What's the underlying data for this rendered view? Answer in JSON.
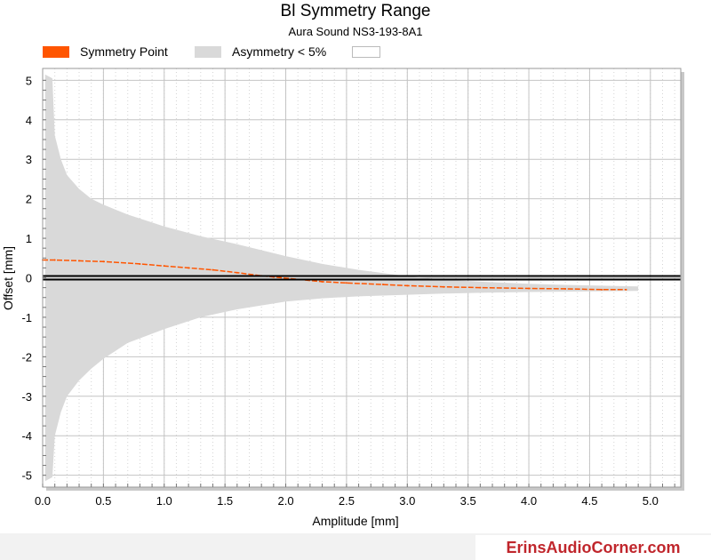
{
  "chart_data": {
    "type": "area",
    "title": "Bl Symmetry Range",
    "subtitle": "Aura Sound NS3-193-8A1",
    "xlabel": "Amplitude [mm]",
    "ylabel": "Offset [mm]",
    "xlim": [
      0,
      5.25
    ],
    "ylim": [
      -5.3,
      5.3
    ],
    "x_ticks": [
      "0.0",
      "0.5",
      "1.0",
      "1.5",
      "2.0",
      "2.5",
      "3.0",
      "3.5",
      "4.0",
      "4.5",
      "5.0"
    ],
    "y_ticks": [
      "5",
      "4",
      "3",
      "2",
      "1",
      "0",
      "-1",
      "-2",
      "-3",
      "-4",
      "-5"
    ],
    "grid": true,
    "legend_position": "top-left",
    "series": [
      {
        "name": "Symmetry Point",
        "color": "#ff5500",
        "kind": "line",
        "x": [
          0.0,
          0.1,
          0.3,
          0.5,
          0.8,
          1.0,
          1.2,
          1.4,
          1.6,
          1.8,
          1.9,
          2.3,
          2.5,
          2.8,
          3.0,
          3.3,
          3.6,
          4.0,
          4.3,
          4.6,
          4.8
        ],
        "y": [
          0.45,
          0.45,
          0.43,
          0.41,
          0.35,
          0.3,
          0.25,
          0.2,
          0.13,
          0.05,
          0.02,
          -0.1,
          -0.13,
          -0.17,
          -0.2,
          -0.23,
          -0.25,
          -0.27,
          -0.28,
          -0.3,
          -0.3
        ]
      },
      {
        "name": "Asymmetry < 5%",
        "color": "#d9d9d9",
        "kind": "band",
        "x": [
          0.02,
          0.08,
          0.1,
          0.15,
          0.2,
          0.3,
          0.4,
          0.5,
          0.7,
          1.0,
          1.3,
          1.6,
          2.0,
          2.3,
          2.6,
          3.0,
          3.3,
          3.6,
          4.0,
          4.3,
          4.6,
          4.9
        ],
        "upper": [
          5.15,
          5.05,
          3.6,
          3.0,
          2.6,
          2.25,
          2.0,
          1.85,
          1.6,
          1.3,
          1.05,
          0.85,
          0.55,
          0.35,
          0.2,
          0.04,
          -0.05,
          -0.1,
          -0.15,
          -0.18,
          -0.2,
          -0.22
        ],
        "lower": [
          -5.15,
          -5.05,
          -4.0,
          -3.4,
          -3.0,
          -2.6,
          -2.3,
          -2.05,
          -1.65,
          -1.3,
          -1.0,
          -0.8,
          -0.6,
          -0.52,
          -0.47,
          -0.43,
          -0.4,
          -0.38,
          -0.36,
          -0.35,
          -0.34,
          -0.33
        ]
      }
    ],
    "legend_extra_label": ""
  },
  "footer": {
    "brand": "ErinsAudioCorner.com"
  }
}
